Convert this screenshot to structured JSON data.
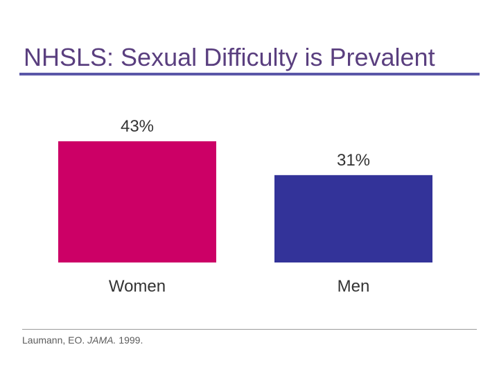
{
  "slide": {
    "title": "NHSLS: Sexual Difficulty is Prevalent"
  },
  "colors": {
    "title": "#5a3f7f",
    "title_rule": "#5a57a8",
    "women_bar": "#cc0066",
    "men_bar": "#333399",
    "text": "#333333"
  },
  "chart_data": {
    "type": "bar",
    "title": "",
    "xlabel": "",
    "ylabel": "",
    "categories": [
      "Women",
      "Men"
    ],
    "values": [
      43,
      31
    ],
    "value_labels": [
      "43%",
      "31%"
    ],
    "bar_colors": [
      "#cc0066",
      "#333399"
    ],
    "ylim": [
      0,
      43
    ],
    "grid": false
  },
  "citation": {
    "author": "Laumann, EO.",
    "journal": "JAMA.",
    "year": "1999."
  }
}
